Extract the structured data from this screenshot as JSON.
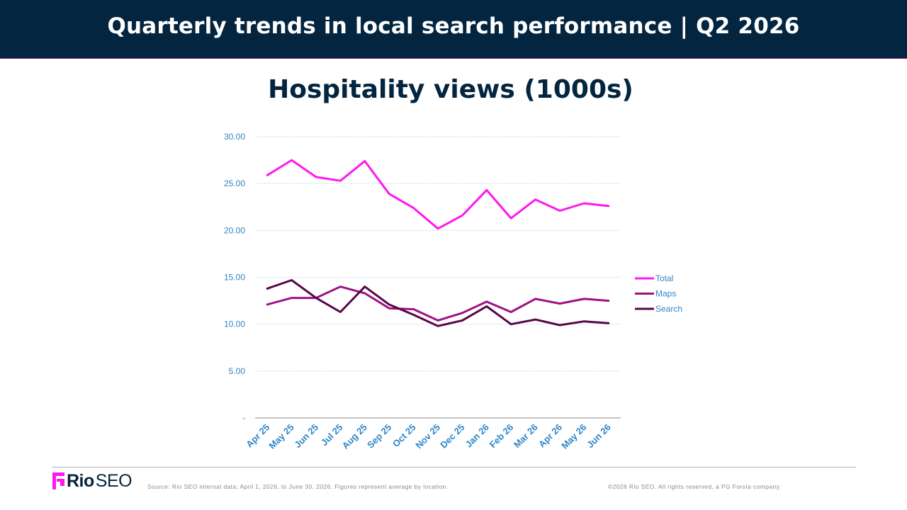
{
  "header": {
    "title": "Quarterly trends in local search performance  |  Q2 2026"
  },
  "chart_data": {
    "type": "line",
    "title": "Hospitality views (1000s)",
    "xlabel": "",
    "ylabel": "",
    "categories": [
      "Apr 25",
      "May 25",
      "Jun 25",
      "Jul 25",
      "Aug 25",
      "Sep 25",
      "Oct 25",
      "Nov 25",
      "Dec 25",
      "Jan 26",
      "Feb 26",
      "Mar 26",
      "Apr 26",
      "May 26",
      "Jun 26"
    ],
    "y_ticks": [
      "-",
      "5.00",
      "10.00",
      "15.00",
      "20.00",
      "25.00",
      "30.00"
    ],
    "ylim": [
      0,
      30
    ],
    "grid": true,
    "legend_position": "right",
    "series": [
      {
        "name": "Total",
        "color": "#ff18ee",
        "values": [
          25.9,
          27.5,
          25.7,
          25.3,
          27.4,
          23.9,
          22.4,
          20.2,
          21.6,
          24.3,
          21.3,
          23.3,
          22.1,
          22.9,
          22.6
        ]
      },
      {
        "name": "Maps",
        "color": "#9c1384",
        "values": [
          12.1,
          12.8,
          12.8,
          14.0,
          13.3,
          11.7,
          11.6,
          10.4,
          11.2,
          12.4,
          11.3,
          12.7,
          12.2,
          12.7,
          12.5
        ]
      },
      {
        "name": "Search",
        "color": "#590646",
        "values": [
          13.8,
          14.7,
          12.8,
          11.3,
          14.0,
          12.1,
          11.0,
          9.8,
          10.4,
          11.9,
          10.0,
          10.5,
          9.9,
          10.3,
          10.1
        ]
      }
    ],
    "colors": {
      "axis_text": "#2e86c8",
      "grid": "#c6e3ef",
      "axis_line": "#888888"
    }
  },
  "footer": {
    "logo_rio": "Rio",
    "logo_seo": "SEO",
    "source_note": "Source: Rio SEO internal data, April 1, 2026, to June 30, 2026. Figures represent average by location.",
    "copyright": "©2026 Rio SEO. All rights reserved, a PG Forsta company."
  }
}
